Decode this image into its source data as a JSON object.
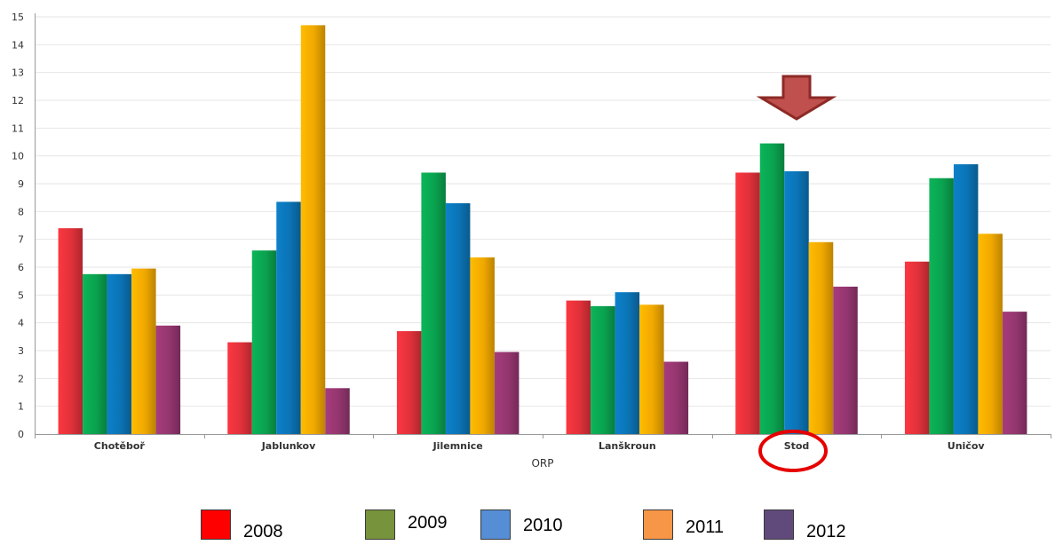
{
  "chart_data": {
    "type": "bar",
    "xlabel": "ORP",
    "ylabel": "",
    "ylim": [
      0,
      15
    ],
    "yticks": [
      "0",
      "1",
      "2",
      "3",
      "4",
      "5",
      "6",
      "7",
      "8",
      "9",
      "10",
      "11",
      "12",
      "13",
      "14",
      "15"
    ],
    "grid": true,
    "legend_position": "bottom",
    "categories": [
      "Chotěboř",
      "Jablunkov",
      "Jilemnice",
      "Lanškroun",
      "Stod",
      "Uničov"
    ],
    "series": [
      {
        "name": "2008",
        "values": [
          7.4,
          3.3,
          3.7,
          4.8,
          9.4,
          6.2
        ],
        "color": "#e0313a"
      },
      {
        "name": "2009",
        "values": [
          5.75,
          6.6,
          9.4,
          4.6,
          10.45,
          9.2
        ],
        "color": "#0aa24f"
      },
      {
        "name": "2010",
        "values": [
          5.75,
          8.35,
          8.3,
          5.1,
          9.45,
          9.7
        ],
        "color": "#0b73b5"
      },
      {
        "name": "2011",
        "values": [
          5.95,
          14.7,
          6.35,
          4.65,
          6.9,
          7.2
        ],
        "color": "#f0a800"
      },
      {
        "name": "2012",
        "values": [
          3.9,
          1.65,
          2.95,
          2.6,
          5.3,
          4.4
        ],
        "color": "#94366f"
      }
    ],
    "annotations": [
      {
        "type": "arrow-down",
        "target_category": "Stod",
        "color": "#c0504d"
      },
      {
        "type": "circle",
        "target_category": "Stod",
        "color": "#e60000"
      }
    ]
  },
  "legend": {
    "items": [
      {
        "label": "2008",
        "color": "#ff0000"
      },
      {
        "label": "2009",
        "color": "#77933c"
      },
      {
        "label": "2010",
        "color": "#558ed5"
      },
      {
        "label": "2011",
        "color": "#f79646"
      },
      {
        "label": "2012",
        "color": "#604a7b"
      }
    ]
  }
}
